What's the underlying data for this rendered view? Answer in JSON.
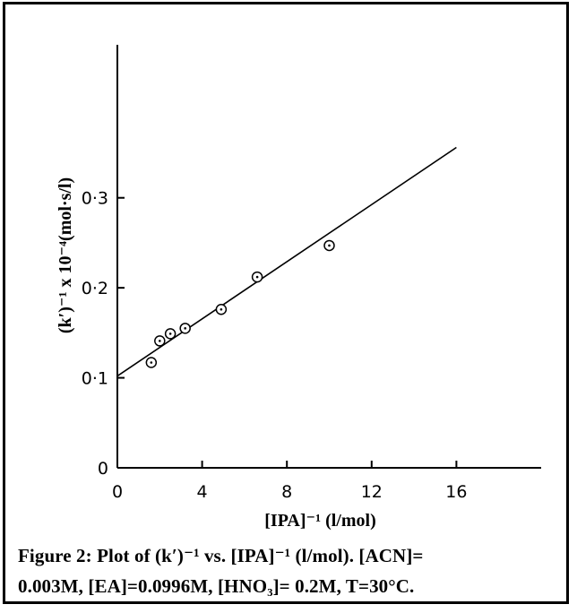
{
  "chart_data": {
    "type": "scatter",
    "xlabel": "[IPA]⁻¹ (l/mol)",
    "ylabel": "(k′)⁻¹ x 10⁻⁴(mol·s/l)",
    "xlim": [
      0,
      20
    ],
    "ylim": [
      0,
      0.47
    ],
    "x_ticks": [
      0,
      4,
      8,
      12,
      16
    ],
    "x_tick_labels": [
      "0",
      "4",
      "8",
      "12",
      "16"
    ],
    "y_ticks": [
      0,
      0.1,
      0.2,
      0.3
    ],
    "y_tick_labels": [
      "0",
      "0·1",
      "0·2",
      "0·3"
    ],
    "grid": false,
    "series": [
      {
        "marker": "circled-dot",
        "x": [
          1.6,
          2.0,
          2.5,
          3.2,
          4.9,
          6.6,
          10.0
        ],
        "y": [
          0.117,
          0.141,
          0.149,
          0.155,
          0.176,
          0.212,
          0.247
        ]
      }
    ],
    "fit_line": {
      "x": [
        0,
        16
      ],
      "y": [
        0.102,
        0.356
      ]
    }
  },
  "caption": {
    "line1": "Figure 2: Plot of (k′)⁻¹ vs. [IPA]⁻¹ (l/mol). [ACN]=",
    "line2": "0.003M, [EA]=0.0996M, [HNO₃]= 0.2M, T=30°C."
  }
}
